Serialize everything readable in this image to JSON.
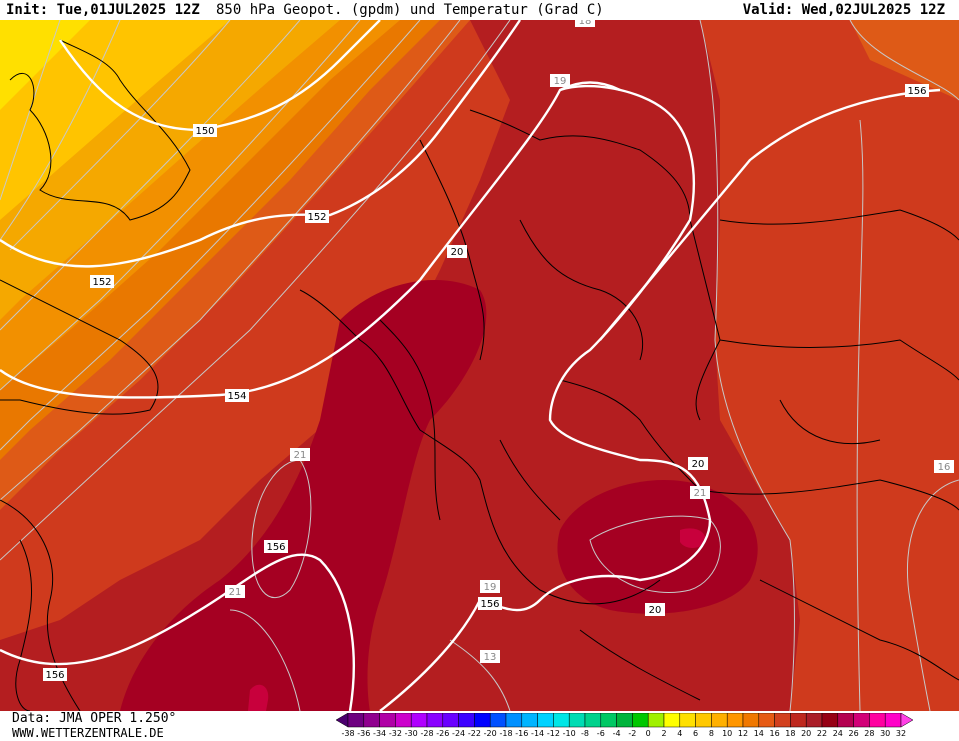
{
  "header": {
    "init": "Init: Tue,01JUL2025 12Z",
    "title": "850 hPa Geopot. (gpdm) und Temperatur (Grad C)",
    "valid": "Valid: Wed,02JUL2025 12Z"
  },
  "footer": {
    "data_source": "Data: JMA OPER 1.250°",
    "website": "WWW.WETTERZENTRALE.DE"
  },
  "map": {
    "geopotential_labels": [
      "150",
      "152",
      "152",
      "152",
      "154",
      "156",
      "156",
      "156",
      "156"
    ],
    "temperature_labels": [
      "20",
      "20",
      "20",
      "19",
      "19",
      "21",
      "21",
      "21",
      "18",
      "16",
      "13",
      "18"
    ]
  },
  "colorbar": {
    "ticks": [
      "-38",
      "-36",
      "-34",
      "-32",
      "-30",
      "-28",
      "-26",
      "-24",
      "-22",
      "-20",
      "-18",
      "-16",
      "-14",
      "-12",
      "-10",
      "-8",
      "-6",
      "-4",
      "-2",
      "0",
      "2",
      "4",
      "6",
      "8",
      "10",
      "12",
      "14",
      "16",
      "18",
      "20",
      "22",
      "24",
      "26",
      "28",
      "30",
      "32"
    ],
    "colors": [
      "#4b006e",
      "#6e0080",
      "#90008f",
      "#b000a6",
      "#cc00cc",
      "#b000ff",
      "#8a00ff",
      "#6a00ff",
      "#3c00ff",
      "#0000ff",
      "#0050ff",
      "#0090ff",
      "#00b4ff",
      "#00d2ff",
      "#00e6e6",
      "#00dcb4",
      "#00d28c",
      "#00c864",
      "#00b43c",
      "#00c800",
      "#a0f000",
      "#ffff00",
      "#ffe000",
      "#ffc800",
      "#ffb000",
      "#ff9600",
      "#f07800",
      "#e65a14",
      "#d2401e",
      "#be281e",
      "#aa1e28",
      "#960014",
      "#b40050",
      "#d20078",
      "#ff00a0",
      "#ff00c8",
      "#ff40e6"
    ]
  },
  "colors": {
    "t10": "#f5a800",
    "t12": "#f29000",
    "t14": "#e97800",
    "t16": "#de5a17",
    "t18": "#cf3a1d",
    "t20": "#b41e20",
    "t22": "#a50022",
    "t24": "#c8003c"
  }
}
